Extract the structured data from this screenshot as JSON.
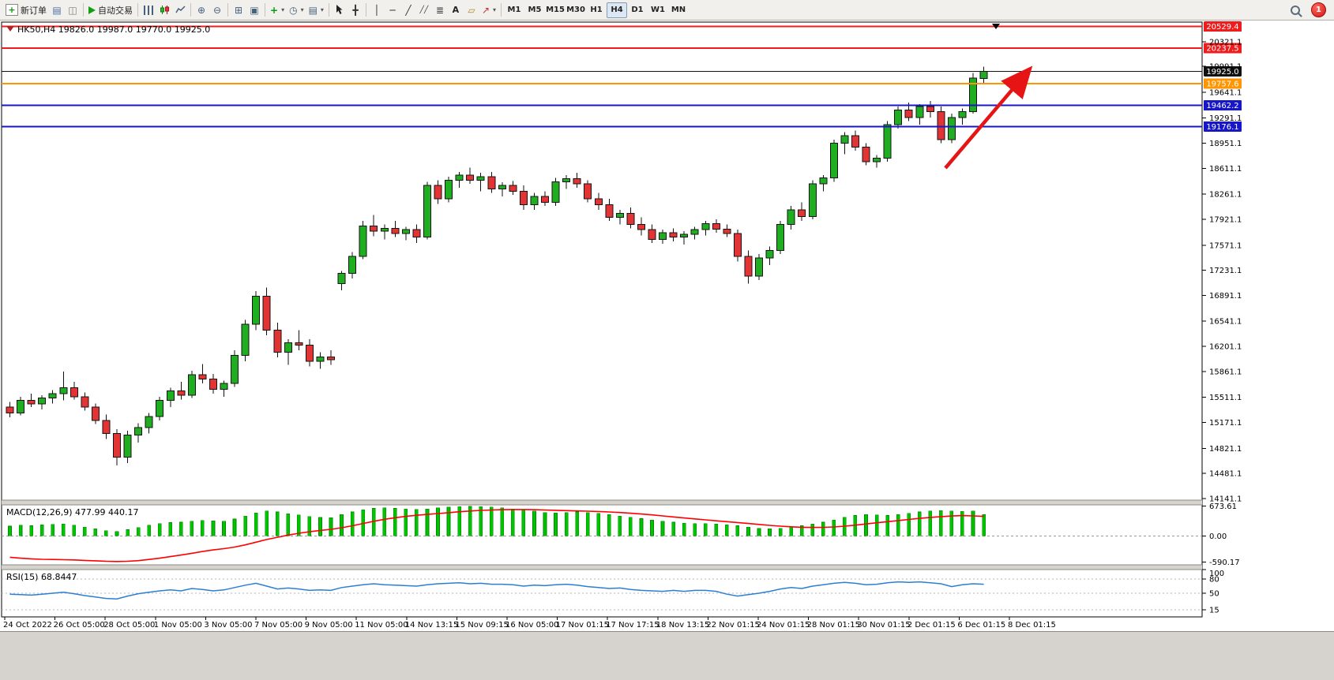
{
  "toolbar": {
    "new_order_label": "新订单",
    "autotrading_label": "自动交易",
    "notification_count": "1",
    "groups": [
      {
        "buttons": [
          {
            "name": "new-order-button",
            "icon": "new-order-icon",
            "label": "新订单"
          },
          {
            "name": "market-watch-button",
            "icon": "market-watch-icon"
          },
          {
            "name": "navigator-button",
            "icon": "navigator-icon"
          }
        ]
      },
      {
        "buttons": [
          {
            "name": "autotrading-button",
            "icon": "autotrading-play-icon",
            "label": "自动交易"
          }
        ]
      },
      {
        "buttons": [
          {
            "name": "bar-chart-button",
            "icon": "bar-chart-icon"
          },
          {
            "name": "candlestick-chart-button",
            "icon": "candlestick-icon"
          },
          {
            "name": "line-chart-button",
            "icon": "line-chart-icon"
          }
        ]
      },
      {
        "buttons": [
          {
            "name": "zoom-in-button",
            "icon": "zoom-in-icon"
          },
          {
            "name": "zoom-out-button",
            "icon": "zoom-out-icon"
          }
        ]
      },
      {
        "buttons": [
          {
            "name": "tile-windows-button",
            "icon": "tile-windows-icon"
          },
          {
            "name": "arrange-windows-button",
            "icon": "arrange-windows-icon"
          }
        ]
      },
      {
        "buttons": [
          {
            "name": "add-indicator-button",
            "icon": "add-indicator-icon",
            "dropdown": true
          },
          {
            "name": "period-button",
            "icon": "period-icon",
            "dropdown": true
          },
          {
            "name": "template-button",
            "icon": "template-icon",
            "dropdown": true
          }
        ]
      },
      {
        "buttons": [
          {
            "name": "cursor-button",
            "icon": "cursor-icon"
          },
          {
            "name": "crosshair-button",
            "icon": "crosshair-icon"
          }
        ]
      },
      {
        "buttons": [
          {
            "name": "vertical-line-button",
            "icon": "vertical-line-icon"
          },
          {
            "name": "horizontal-line-button",
            "icon": "horizontal-line-icon"
          },
          {
            "name": "trendline-button",
            "icon": "trendline-icon"
          },
          {
            "name": "channel-button",
            "icon": "channel-icon"
          },
          {
            "name": "fibonacci-button",
            "icon": "fibonacci-icon"
          },
          {
            "name": "text-button",
            "icon": "text-icon"
          },
          {
            "name": "label-button",
            "icon": "label-icon"
          },
          {
            "name": "arrows-button",
            "icon": "arrows-icon",
            "dropdown": true
          }
        ]
      }
    ],
    "timeframes": [
      "M1",
      "M5",
      "M15",
      "M30",
      "H1",
      "H4",
      "D1",
      "W1",
      "MN"
    ],
    "active_timeframe": "H4"
  },
  "chart": {
    "title": "HK50,H4 19826.0 19987.0 19770.0 19925.0",
    "symbol": "HK50",
    "period": "H4",
    "ohlc": {
      "open": "19826.0",
      "high": "19987.0",
      "low": "19770.0",
      "close": "19925.0"
    },
    "colors": {
      "up": "#1fae1f",
      "down": "#e23434",
      "wick": "#111111",
      "macd_bar": "#00c400",
      "macd_signal": "#ff0000",
      "rsi_line": "#2a7fd4",
      "arrow": "#e61414"
    },
    "price_axis_ticks": [
      "20321.1",
      "19991.1",
      "19641.1",
      "19291.1",
      "18951.1",
      "18611.1",
      "18261.1",
      "17921.1",
      "17571.1",
      "17231.1",
      "16891.1",
      "16541.1",
      "16201.1",
      "15861.1",
      "15511.1",
      "15171.1",
      "14821.1",
      "14481.1",
      "14141.1"
    ],
    "lines": [
      {
        "label": "20529.4",
        "price": 20529.4,
        "color": "#ee1c1c",
        "width": 2
      },
      {
        "label": "20237.5",
        "price": 20237.5,
        "color": "#ee1c1c",
        "width": 2
      },
      {
        "label": "19925.0",
        "price": 19925.0,
        "color": "#111111",
        "width": 1
      },
      {
        "label": "19757.6",
        "price": 19757.6,
        "color": "#ff9500",
        "width": 2
      },
      {
        "label": "19462.2",
        "price": 19462.2,
        "color": "#1717c9",
        "width": 2
      },
      {
        "label": "19176.1",
        "price": 19176.1,
        "color": "#1717c9",
        "width": 2
      }
    ],
    "arrow": {
      "color": "#e61414",
      "direction": "up-right"
    }
  },
  "chart_data": {
    "type": "candlestick",
    "title": "HK50,H4",
    "symbol": "HK50",
    "timeframe": "H4",
    "ylim": [
      14120,
      20590
    ],
    "x_labels": [
      "24 Oct 2022",
      "26 Oct 05:00",
      "28 Oct 05:00",
      "1 Nov 05:00",
      "3 Nov 05:00",
      "7 Nov 05:00",
      "9 Nov 05:00",
      "11 Nov 05:00",
      "14 Nov 13:15",
      "15 Nov 09:15",
      "16 Nov 05:00",
      "17 Nov 01:15",
      "17 Nov 17:15",
      "18 Nov 13:15",
      "22 Nov 01:15",
      "24 Nov 01:15",
      "28 Nov 01:15",
      "30 Nov 01:15",
      "2 Dec 01:15",
      "6 Dec 01:15",
      "8 Dec 01:15"
    ],
    "candles": [
      [
        15380,
        15450,
        15240,
        15300
      ],
      [
        15300,
        15520,
        15270,
        15470
      ],
      [
        15470,
        15560,
        15380,
        15420
      ],
      [
        15420,
        15540,
        15350,
        15500
      ],
      [
        15500,
        15610,
        15430,
        15560
      ],
      [
        15560,
        15860,
        15470,
        15640
      ],
      [
        15640,
        15720,
        15480,
        15520
      ],
      [
        15520,
        15580,
        15330,
        15380
      ],
      [
        15380,
        15430,
        15150,
        15200
      ],
      [
        15200,
        15280,
        14950,
        15020
      ],
      [
        15020,
        15080,
        14590,
        14700
      ],
      [
        14700,
        15060,
        14620,
        15000
      ],
      [
        15000,
        15160,
        14900,
        15100
      ],
      [
        15100,
        15300,
        15020,
        15250
      ],
      [
        15250,
        15520,
        15200,
        15470
      ],
      [
        15470,
        15640,
        15380,
        15600
      ],
      [
        15600,
        15720,
        15480,
        15540
      ],
      [
        15540,
        15870,
        15500,
        15820
      ],
      [
        15820,
        15960,
        15700,
        15760
      ],
      [
        15760,
        15830,
        15560,
        15620
      ],
      [
        15620,
        15740,
        15520,
        15700
      ],
      [
        15700,
        16150,
        15650,
        16080
      ],
      [
        16080,
        16560,
        16000,
        16500
      ],
      [
        16500,
        16950,
        16420,
        16880
      ],
      [
        16880,
        17000,
        16350,
        16420
      ],
      [
        16420,
        16520,
        16050,
        16120
      ],
      [
        16120,
        16300,
        15950,
        16250
      ],
      [
        16250,
        16420,
        16150,
        16220
      ],
      [
        16220,
        16300,
        15930,
        16000
      ],
      [
        16000,
        16120,
        15900,
        16060
      ],
      [
        16060,
        16150,
        15950,
        16020
      ],
      [
        17050,
        17220,
        16960,
        17190
      ],
      [
        17190,
        17480,
        17120,
        17420
      ],
      [
        17420,
        17900,
        17380,
        17830
      ],
      [
        17830,
        17980,
        17690,
        17760
      ],
      [
        17760,
        17850,
        17650,
        17800
      ],
      [
        17800,
        17900,
        17680,
        17730
      ],
      [
        17730,
        17820,
        17640,
        17780
      ],
      [
        17780,
        17850,
        17600,
        17680
      ],
      [
        17680,
        18430,
        17650,
        18380
      ],
      [
        18380,
        18450,
        18130,
        18200
      ],
      [
        18200,
        18500,
        18150,
        18450
      ],
      [
        18450,
        18560,
        18350,
        18520
      ],
      [
        18520,
        18620,
        18400,
        18450
      ],
      [
        18450,
        18550,
        18300,
        18500
      ],
      [
        18500,
        18560,
        18280,
        18330
      ],
      [
        18330,
        18420,
        18230,
        18380
      ],
      [
        18380,
        18440,
        18250,
        18300
      ],
      [
        18300,
        18380,
        18050,
        18120
      ],
      [
        18120,
        18280,
        18050,
        18230
      ],
      [
        18230,
        18300,
        18100,
        18150
      ],
      [
        18150,
        18480,
        18100,
        18430
      ],
      [
        18430,
        18520,
        18330,
        18470
      ],
      [
        18470,
        18550,
        18350,
        18400
      ],
      [
        18400,
        18450,
        18150,
        18200
      ],
      [
        18200,
        18280,
        18050,
        18120
      ],
      [
        18120,
        18200,
        17900,
        17950
      ],
      [
        17950,
        18050,
        17850,
        18000
      ],
      [
        18000,
        18080,
        17800,
        17850
      ],
      [
        17850,
        17950,
        17700,
        17780
      ],
      [
        17780,
        17850,
        17600,
        17650
      ],
      [
        17650,
        17780,
        17590,
        17740
      ],
      [
        17740,
        17800,
        17620,
        17680
      ],
      [
        17680,
        17760,
        17580,
        17720
      ],
      [
        17720,
        17820,
        17650,
        17780
      ],
      [
        17780,
        17900,
        17700,
        17860
      ],
      [
        17860,
        17920,
        17740,
        17790
      ],
      [
        17790,
        17850,
        17680,
        17730
      ],
      [
        17730,
        17780,
        17350,
        17420
      ],
      [
        17420,
        17500,
        17050,
        17150
      ],
      [
        17150,
        17450,
        17100,
        17400
      ],
      [
        17400,
        17550,
        17300,
        17500
      ],
      [
        17500,
        17900,
        17450,
        17850
      ],
      [
        17850,
        18100,
        17780,
        18050
      ],
      [
        18050,
        18150,
        17900,
        17960
      ],
      [
        17960,
        18450,
        17920,
        18400
      ],
      [
        18400,
        18520,
        18300,
        18480
      ],
      [
        18480,
        19000,
        18430,
        18950
      ],
      [
        18950,
        19100,
        18800,
        19050
      ],
      [
        19050,
        19120,
        18850,
        18900
      ],
      [
        18900,
        18950,
        18650,
        18700
      ],
      [
        18700,
        18790,
        18620,
        18750
      ],
      [
        18750,
        19250,
        18700,
        19200
      ],
      [
        19200,
        19450,
        19150,
        19400
      ],
      [
        19400,
        19500,
        19250,
        19300
      ],
      [
        19300,
        19480,
        19200,
        19450
      ],
      [
        19450,
        19520,
        19300,
        19380
      ],
      [
        19380,
        19450,
        18950,
        19000
      ],
      [
        19000,
        19350,
        18950,
        19300
      ],
      [
        19300,
        19420,
        19200,
        19380
      ],
      [
        19380,
        19900,
        19350,
        19830
      ],
      [
        19826,
        19987,
        19770,
        19925
      ]
    ],
    "indicators": [
      {
        "name": "MACD",
        "label": "MACD(12,26,9) 477.99 440.17",
        "params": "12,26,9",
        "current": {
          "macd": 477.99,
          "signal": 440.17
        },
        "axis": [
          "673.61",
          "0.00",
          "-590.17"
        ],
        "histogram": [
          220,
          240,
          230,
          250,
          260,
          270,
          240,
          200,
          160,
          120,
          100,
          140,
          190,
          240,
          280,
          300,
          310,
          330,
          350,
          340,
          330,
          380,
          450,
          520,
          560,
          540,
          500,
          470,
          440,
          420,
          410,
          480,
          540,
          590,
          620,
          630,
          620,
          610,
          600,
          610,
          630,
          650,
          660,
          665,
          660,
          650,
          630,
          610,
          590,
          560,
          530,
          520,
          530,
          540,
          530,
          510,
          480,
          450,
          420,
          390,
          360,
          330,
          310,
          290,
          280,
          280,
          270,
          250,
          230,
          200,
          170,
          160,
          170,
          200,
          230,
          270,
          310,
          360,
          420,
          460,
          480,
          470,
          460,
          480,
          510,
          540,
          560,
          570,
          560,
          550,
          560,
          478
        ],
        "signal_line": [
          -480,
          -500,
          -515,
          -525,
          -530,
          -535,
          -540,
          -550,
          -560,
          -570,
          -575,
          -570,
          -555,
          -530,
          -500,
          -465,
          -430,
          -390,
          -350,
          -315,
          -285,
          -250,
          -200,
          -140,
          -80,
          -30,
          20,
          60,
          95,
          125,
          150,
          185,
          230,
          280,
          330,
          375,
          410,
          440,
          465,
          485,
          505,
          525,
          545,
          562,
          575,
          585,
          592,
          596,
          596,
          592,
          585,
          577,
          570,
          564,
          558,
          550,
          540,
          527,
          512,
          494,
          474,
          452,
          429,
          406,
          383,
          362,
          342,
          322,
          302,
          281,
          259,
          238,
          220,
          206,
          196,
          192,
          194,
          203,
          220,
          243,
          270,
          297,
          322,
          347,
          372,
          396,
          418,
          436,
          450,
          458,
          452,
          440
        ]
      },
      {
        "name": "RSI",
        "label": "RSI(15) 68.8447",
        "params": "15",
        "current": 68.8447,
        "axis": [
          "100",
          "80",
          "50",
          "15"
        ],
        "levels": [
          80,
          50,
          15
        ],
        "series": [
          48,
          47,
          46,
          48,
          50,
          52,
          49,
          45,
          42,
          39,
          38,
          44,
          49,
          52,
          55,
          57,
          55,
          60,
          58,
          55,
          57,
          62,
          67,
          71,
          65,
          59,
          61,
          59,
          56,
          57,
          56,
          62,
          65,
          68,
          70,
          68,
          67,
          66,
          65,
          68,
          70,
          71,
          72,
          70,
          71,
          69,
          69,
          68,
          65,
          67,
          66,
          68,
          69,
          67,
          64,
          62,
          60,
          61,
          58,
          56,
          55,
          54,
          56,
          54,
          56,
          56,
          54,
          48,
          44,
          47,
          50,
          54,
          59,
          62,
          60,
          65,
          68,
          71,
          73,
          71,
          68,
          69,
          72,
          74,
          73,
          74,
          72,
          70,
          64,
          68,
          70,
          69
        ]
      }
    ]
  }
}
